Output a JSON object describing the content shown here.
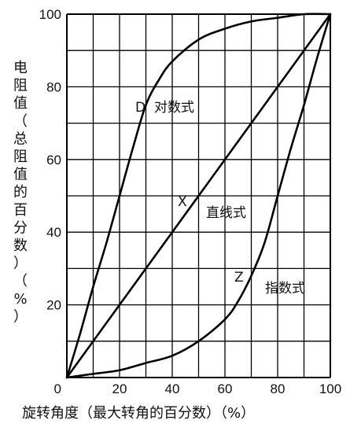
{
  "chart_data": {
    "type": "line",
    "title": "",
    "xlabel": "旋转角度（最大转角的百分数）（%）",
    "ylabel_chars": [
      "电",
      "阻",
      "值",
      "（",
      "总",
      "阻",
      "值",
      "的",
      "百",
      "分",
      "数",
      "）",
      "（",
      "%",
      "）"
    ],
    "xlim": [
      0,
      100
    ],
    "ylim": [
      0,
      100
    ],
    "x_ticks": [
      "0",
      "20",
      "40",
      "60",
      "80",
      "100"
    ],
    "y_ticks": [
      "0",
      "20",
      "40",
      "60",
      "80",
      "100"
    ],
    "grid": true,
    "grid_step": 10,
    "series": [
      {
        "name": "对数式",
        "label_letter": "D",
        "x": [
          0,
          5,
          10,
          15,
          20,
          25,
          30,
          35,
          40,
          50,
          60,
          70,
          80,
          90,
          100
        ],
        "y": [
          0,
          12,
          25,
          37,
          50,
          63,
          75,
          82,
          87,
          93,
          96,
          98,
          99,
          100,
          100
        ]
      },
      {
        "name": "直线式",
        "label_letter": "X",
        "x": [
          0,
          100
        ],
        "y": [
          0,
          100
        ]
      },
      {
        "name": "指数式",
        "label_letter": "Z",
        "x": [
          0,
          10,
          20,
          30,
          40,
          50,
          60,
          65,
          70,
          75,
          80,
          85,
          90,
          95,
          100
        ],
        "y": [
          0,
          1,
          2,
          4,
          6,
          10,
          16,
          21,
          28,
          37,
          50,
          63,
          75,
          88,
          100
        ]
      }
    ]
  }
}
